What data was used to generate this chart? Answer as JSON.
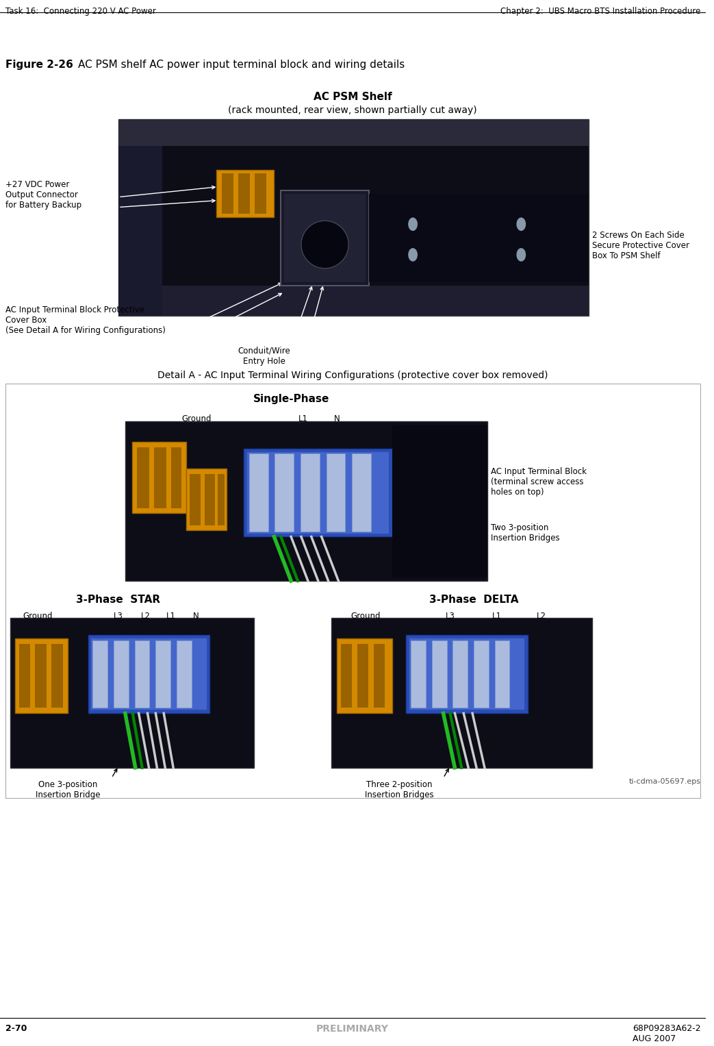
{
  "page_width": 10.43,
  "page_height": 15.27,
  "bg_color": "#ffffff",
  "header_left": "Task 16:  Connecting 220 V AC Power",
  "header_right": "Chapter 2:  UBS Macro BTS Installation Procedure",
  "footer_left": "2-70",
  "footer_center": "PRELIMINARY",
  "footer_right": "68P09283A62-2\nAUG 2007",
  "figure_label": "Figure 2-26",
  "figure_title": "AC PSM shelf AC power input terminal block and wiring details",
  "shelf_title_bold": "AC PSM Shelf",
  "shelf_subtitle": "(rack mounted, rear view, shown partially cut away)",
  "label_battery": "+27 VDC Power\nOutput Connector\nfor Battery Backup",
  "label_terminal": "AC Input Terminal Block Protective\nCover Box\n(See Detail A for Wiring Configurations)",
  "label_conduit": "Conduit/Wire\nEntry Hole",
  "label_screws": "2 Screws On Each Side\nSecure Protective Cover\nBox To PSM Shelf",
  "detail_title": "Detail A - AC Input Terminal Wiring Configurations (protective cover box removed)",
  "single_phase_title": "Single-Phase",
  "label_ground_sp": "Ground",
  "label_l1_sp": "L1",
  "label_n_sp": "N",
  "label_ac_block": "AC Input Terminal Block\n(terminal screw access\nholes on top)",
  "label_two_bridges": "Two 3-position\nInsertion Bridges",
  "star_title": "3-Phase  STAR",
  "delta_title": "3-Phase  DELTA",
  "label_ground_star": "Ground",
  "label_l3_star": "L3",
  "label_l2_star": "L2",
  "label_l1_star": "L1",
  "label_n_star": "N",
  "label_ground_delta": "Ground",
  "label_l3_delta": "L3",
  "label_l1_delta": "L1",
  "label_l2_delta": "L2",
  "label_one_bridge": "One 3-position\nInsertion Bridge",
  "label_three_bridges": "Three 2-position\nInsertion Bridges",
  "label_eps": "ti-cdma-05697.eps",
  "header_font_size": 8.5,
  "footer_font_size": 9,
  "figure_label_font_size": 11,
  "body_font_size": 10,
  "shelf_title_font_size": 11,
  "detail_title_font_size": 10,
  "section_title_font_size": 11,
  "label_font_size": 8.5,
  "small_label_font_size": 8,
  "preliminary_color": "#aaaaaa",
  "dark_bg": "#0d0d18",
  "dark_bg2": "#111122",
  "yellow": "#d48a00",
  "yellow_dark": "#9a6300",
  "blue_block": "#2a4db5",
  "blue_light": "#4466cc",
  "screw_color": "#8899aa",
  "wire_green": "#22bb22",
  "wire_white": "#cccccc",
  "wire_white2": "#dddddd"
}
